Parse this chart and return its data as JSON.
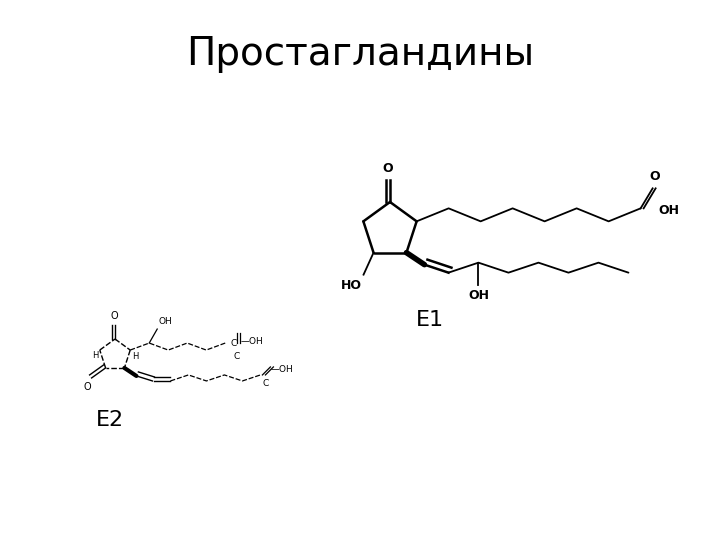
{
  "title": "Простагландины",
  "title_fontsize": 28,
  "background_color": "#ffffff",
  "label_e1": "E1",
  "label_e2": "E2",
  "label_fontsize": 16
}
